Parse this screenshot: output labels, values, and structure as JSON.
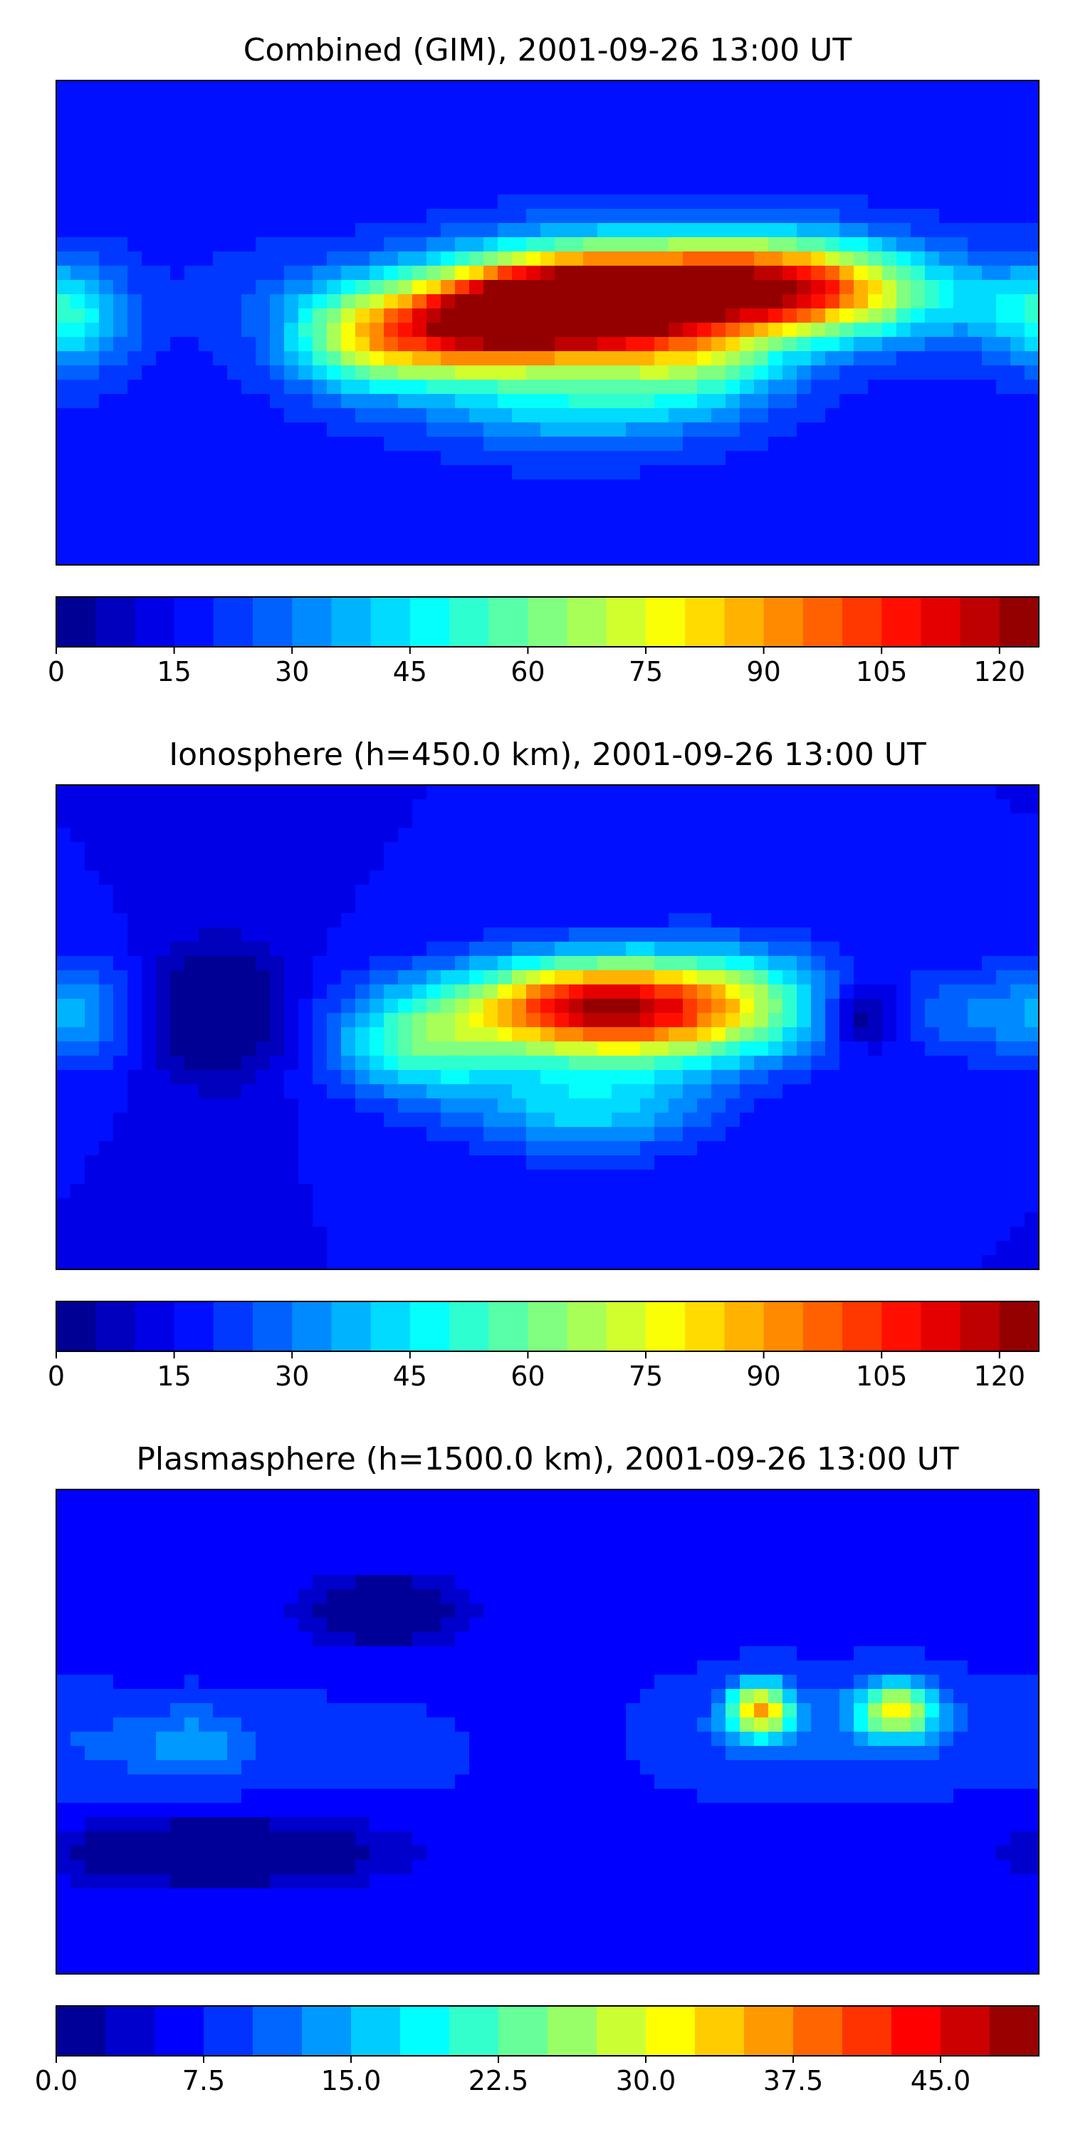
{
  "chart_data": [
    {
      "type": "heatmap",
      "title": "Combined (GIM), 2001-09-26 13:00 UT",
      "xlabel": "",
      "ylabel": "",
      "colormap": "jet",
      "colorbar": {
        "min": 0,
        "max": 125,
        "levels": 25,
        "ticks": [
          0,
          15,
          30,
          45,
          60,
          75,
          90,
          105,
          120
        ],
        "tick_labels": [
          "0",
          "15",
          "30",
          "45",
          "60",
          "75",
          "90",
          "105",
          "120"
        ]
      },
      "background": 18,
      "hotspots": [
        {
          "lon": 0,
          "lat": 5,
          "value": 118,
          "sx": 32,
          "sy": 13
        },
        {
          "lon": 35,
          "lat": 10,
          "value": 86,
          "sx": 38,
          "sy": 14
        },
        {
          "lon": 80,
          "lat": 15,
          "value": 72,
          "sx": 30,
          "sy": 12
        },
        {
          "lon": 110,
          "lat": 10,
          "value": 56,
          "sx": 30,
          "sy": 12
        },
        {
          "lon": -40,
          "lat": -5,
          "value": 72,
          "sx": 26,
          "sy": 13
        },
        {
          "lon": -72,
          "lat": -5,
          "value": 48,
          "sx": 18,
          "sy": 14
        },
        {
          "lon": 10,
          "lat": -30,
          "value": 42,
          "sx": 34,
          "sy": 12
        },
        {
          "lon": 55,
          "lat": -15,
          "value": 48,
          "sx": 24,
          "sy": 12
        },
        {
          "lon": -172,
          "lat": 0,
          "value": 36,
          "sx": 14,
          "sy": 14
        },
        {
          "lon": 175,
          "lat": 5,
          "value": 36,
          "sx": 18,
          "sy": 12
        },
        {
          "lon": -110,
          "lat": 10,
          "value": 22,
          "sx": 20,
          "sy": 14
        }
      ]
    },
    {
      "type": "heatmap",
      "title": "Ionosphere  (h=450.0 km), 2001-09-26 13:00 UT",
      "xlabel": "",
      "ylabel": "",
      "colormap": "jet",
      "colorbar": {
        "min": 0,
        "max": 125,
        "levels": 25,
        "ticks": [
          0,
          15,
          30,
          45,
          60,
          75,
          90,
          105,
          120
        ],
        "tick_labels": [
          "0",
          "15",
          "30",
          "45",
          "60",
          "75",
          "90",
          "105",
          "120"
        ]
      },
      "background": 15,
      "hotspots": [
        {
          "lon": 10,
          "lat": 8,
          "value": 83,
          "sx": 30,
          "sy": 12
        },
        {
          "lon": 40,
          "lat": 5,
          "value": 62,
          "sx": 34,
          "sy": 14
        },
        {
          "lon": 70,
          "lat": 10,
          "value": 42,
          "sx": 26,
          "sy": 14
        },
        {
          "lon": -45,
          "lat": -5,
          "value": 55,
          "sx": 24,
          "sy": 14
        },
        {
          "lon": 15,
          "lat": -30,
          "value": 42,
          "sx": 30,
          "sy": 12
        },
        {
          "lon": 160,
          "lat": 5,
          "value": 30,
          "sx": 22,
          "sy": 12
        },
        {
          "lon": -170,
          "lat": 5,
          "value": 30,
          "sx": 14,
          "sy": 14
        },
        {
          "lon": 115,
          "lat": 5,
          "value": -8,
          "sx": 10,
          "sy": 8
        },
        {
          "lon": -120,
          "lat": 5,
          "value": -6,
          "sx": 18,
          "sy": 18
        }
      ]
    },
    {
      "type": "heatmap",
      "title": "Plasmasphere (h=1500.0 km), 2001-09-26 13:00 UT",
      "xlabel": "",
      "ylabel": "",
      "colormap": "jet",
      "colorbar": {
        "min": 0,
        "max": 50,
        "levels": 20,
        "ticks": [
          0,
          7.5,
          15,
          22.5,
          30,
          37.5,
          45
        ],
        "tick_labels": [
          "0.0",
          "7.5",
          "15.0",
          "22.5",
          "30.0",
          "37.5",
          "45.0"
        ]
      },
      "background": 7,
      "hotspots": [
        {
          "lon": 78,
          "lat": 8,
          "value": 33,
          "sx": 8,
          "sy": 7
        },
        {
          "lon": 128,
          "lat": 8,
          "value": 30,
          "sx": 10,
          "sy": 7
        },
        {
          "lon": 80,
          "lat": 0,
          "value": 10,
          "sx": 40,
          "sy": 14
        },
        {
          "lon": 130,
          "lat": 0,
          "value": 9,
          "sx": 30,
          "sy": 14
        },
        {
          "lon": -130,
          "lat": -5,
          "value": 14,
          "sx": 14,
          "sy": 10
        },
        {
          "lon": -165,
          "lat": -5,
          "value": 10,
          "sx": 14,
          "sy": 12
        },
        {
          "lon": -95,
          "lat": -5,
          "value": 9,
          "sx": 18,
          "sy": 12
        },
        {
          "lon": -40,
          "lat": -5,
          "value": 8,
          "sx": 20,
          "sy": 14
        },
        {
          "lon": 10,
          "lat": 0,
          "value": 6,
          "sx": 30,
          "sy": 14
        },
        {
          "lon": -60,
          "lat": 45,
          "value": -5,
          "sx": 18,
          "sy": 8
        },
        {
          "lon": -120,
          "lat": -45,
          "value": -5,
          "sx": 40,
          "sy": 8
        }
      ]
    }
  ]
}
